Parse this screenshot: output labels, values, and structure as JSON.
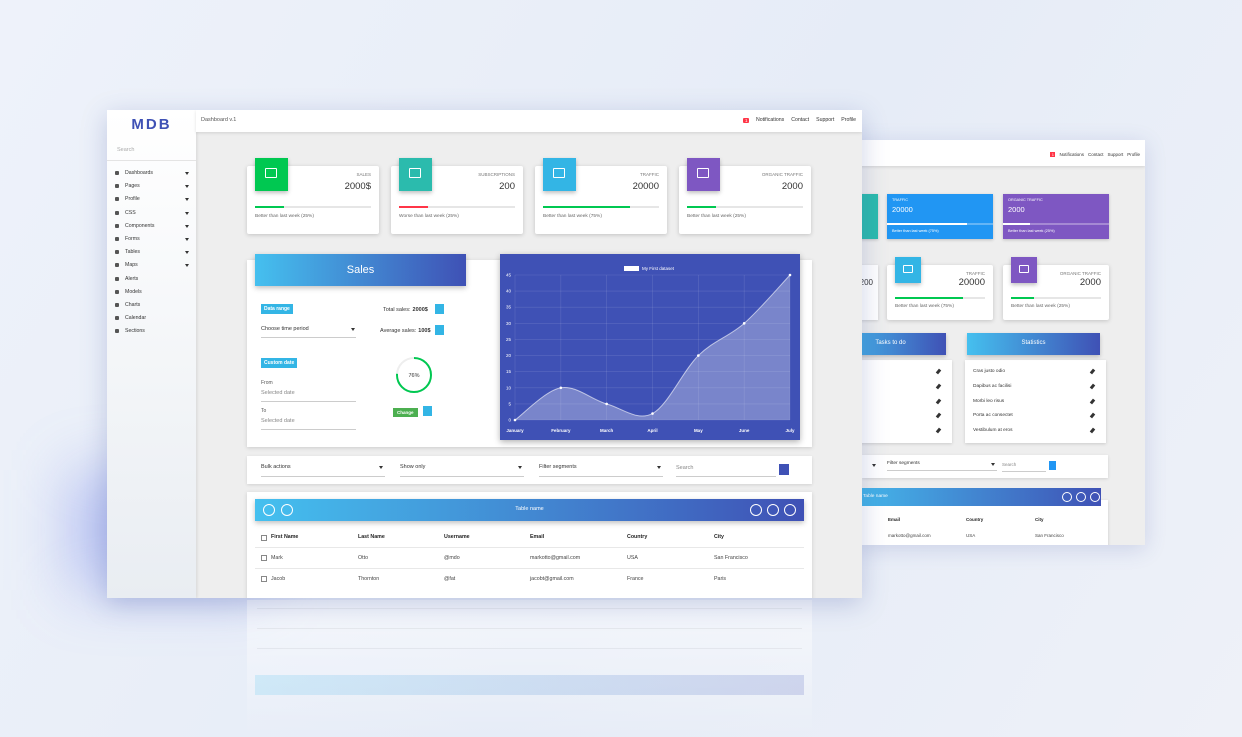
{
  "logo": "MDB",
  "search": "Search",
  "nav": [
    "Dashboards",
    "Pages",
    "Profile",
    "CSS",
    "Components",
    "Forms",
    "Tables",
    "Maps",
    "Alerts",
    "Models",
    "Charts",
    "Calendar",
    "Sections"
  ],
  "breadcrumb": "Dashboard v.1",
  "topnav": {
    "badge": "1",
    "items": [
      "Notifications",
      "Contact",
      "Support",
      "Profile"
    ]
  },
  "cards": [
    {
      "label": "SALES",
      "value": "2000$",
      "note": "Better than last week (25%)",
      "progress": 25,
      "color": "#00c851",
      "bar": "#00c851"
    },
    {
      "label": "SUBSCRIPTIONS",
      "value": "200",
      "note": "Worse than last week (25%)",
      "progress": 25,
      "color": "#2bbbad",
      "bar": "#ff3547"
    },
    {
      "label": "TRAFFIC",
      "value": "20000",
      "note": "Better than last week (75%)",
      "progress": 75,
      "color": "#33b5e5",
      "bar": "#00c851"
    },
    {
      "label": "ORGANIC TRAFFIC",
      "value": "2000",
      "note": "Better than last week (25%)",
      "progress": 25,
      "color": "#7e57c2",
      "bar": "#00c851"
    }
  ],
  "sales": {
    "title": "Sales",
    "data_range": "Data range",
    "choose": "Choose time period",
    "custom_date": "Custom date",
    "from": "From",
    "from_placeholder": "Selected date",
    "to": "To",
    "to_placeholder": "Selected date",
    "total_label": "Total sales:",
    "total": "2000$",
    "avg_label": "Average sales:",
    "avg": "100$",
    "gauge": {
      "value": 76,
      "label": "76%"
    },
    "change": "Change"
  },
  "chart": {
    "type": "line",
    "legend": "My First dataset",
    "categories": [
      "January",
      "February",
      "March",
      "April",
      "May",
      "June",
      "July"
    ],
    "values": [
      0,
      10,
      5,
      2,
      20,
      30,
      45
    ],
    "ylim": [
      0,
      45
    ],
    "yticks": [
      0,
      5,
      10,
      15,
      20,
      25,
      30,
      35,
      40,
      45
    ],
    "grid": true,
    "color": "#ffffff"
  },
  "filters": [
    "Bulk actions",
    "Show only",
    "Filter segments"
  ],
  "search_placeholder": "Search",
  "table": {
    "title": "Table name",
    "headers": [
      "First Name",
      "Last Name",
      "Username",
      "Email",
      "Country",
      "City"
    ],
    "rows": [
      [
        "Mark",
        "Otto",
        "@mdo",
        "markotto@gmail.com",
        "USA",
        "San Francisco"
      ],
      [
        "Jacob",
        "Thornton",
        "@fat",
        "jacobt@gmail.com",
        "France",
        "Paris"
      ]
    ]
  },
  "back": {
    "topnav": {
      "badge": "1",
      "items": [
        "Notifications",
        "Contact",
        "Support",
        "Profile"
      ]
    },
    "color_cards": [
      {
        "label": "TRAFFIC",
        "value": "20000",
        "note": "Better than last week (75%)",
        "progress": 75,
        "color": "#2196f3"
      },
      {
        "label": "ORGANIC TRAFFIC",
        "value": "2000",
        "note": "Better than last week (25%)",
        "progress": 25,
        "color": "#7e57c2"
      }
    ],
    "partial_value": "200",
    "cards": [
      {
        "label": "TRAFFIC",
        "value": "20000",
        "note": "Better than last week (75%)",
        "progress": 75,
        "color": "#33b5e5",
        "bar": "#00c851"
      },
      {
        "label": "ORGANIC TRAFFIC",
        "value": "2000",
        "note": "Better than last week (25%)",
        "progress": 25,
        "color": "#7e57c2",
        "bar": "#00c851"
      }
    ],
    "tasks_title": "Tasks to do",
    "stats_title": "Statistics",
    "stats": [
      "Cras justo odio",
      "Dapibus ac facilisi",
      "Morbi leo risus",
      "Porta ac consectet",
      "Vestibulum at eros"
    ],
    "filter": "Filter segments",
    "search": "Search",
    "table_title": "Table name",
    "headers": [
      "Email",
      "Country",
      "City"
    ],
    "rows": [
      [
        "markotto@gmail.com",
        "USA",
        "San Francisco"
      ]
    ]
  }
}
